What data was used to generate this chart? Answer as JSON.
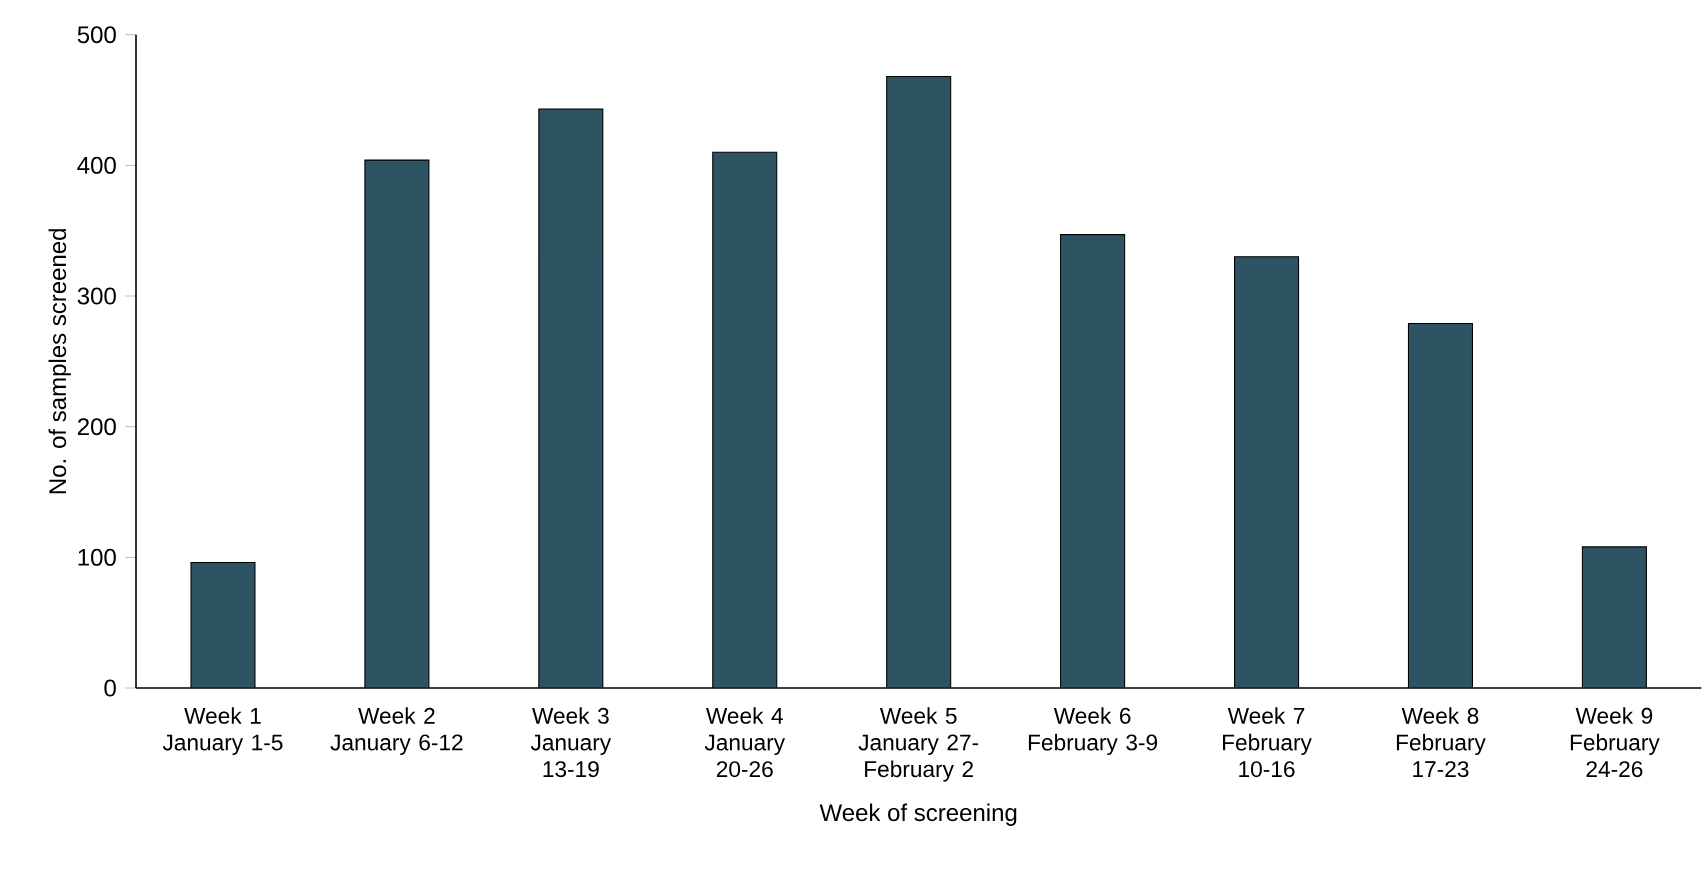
{
  "chart_data": {
    "type": "bar",
    "xlabel": "Week of screening",
    "ylabel": "No. of samples screened",
    "categories": [
      "Week 1 January 1-5",
      "Week 2 January 6-12",
      "Week 3 January 13-19",
      "Week 4 January 20-26",
      "Week 5 January 27- February 2",
      "Week 6 February 3-9",
      "Week 7 February 10-16",
      "Week 8 February 17-23",
      "Week 9 February 24-26"
    ],
    "values": [
      96,
      404,
      443,
      410,
      468,
      347,
      330,
      279,
      108
    ],
    "color": "#2d5462",
    "ylim": [
      0,
      500
    ],
    "yticks": [
      0,
      100,
      200,
      300,
      400,
      500
    ],
    "grid": false
  }
}
